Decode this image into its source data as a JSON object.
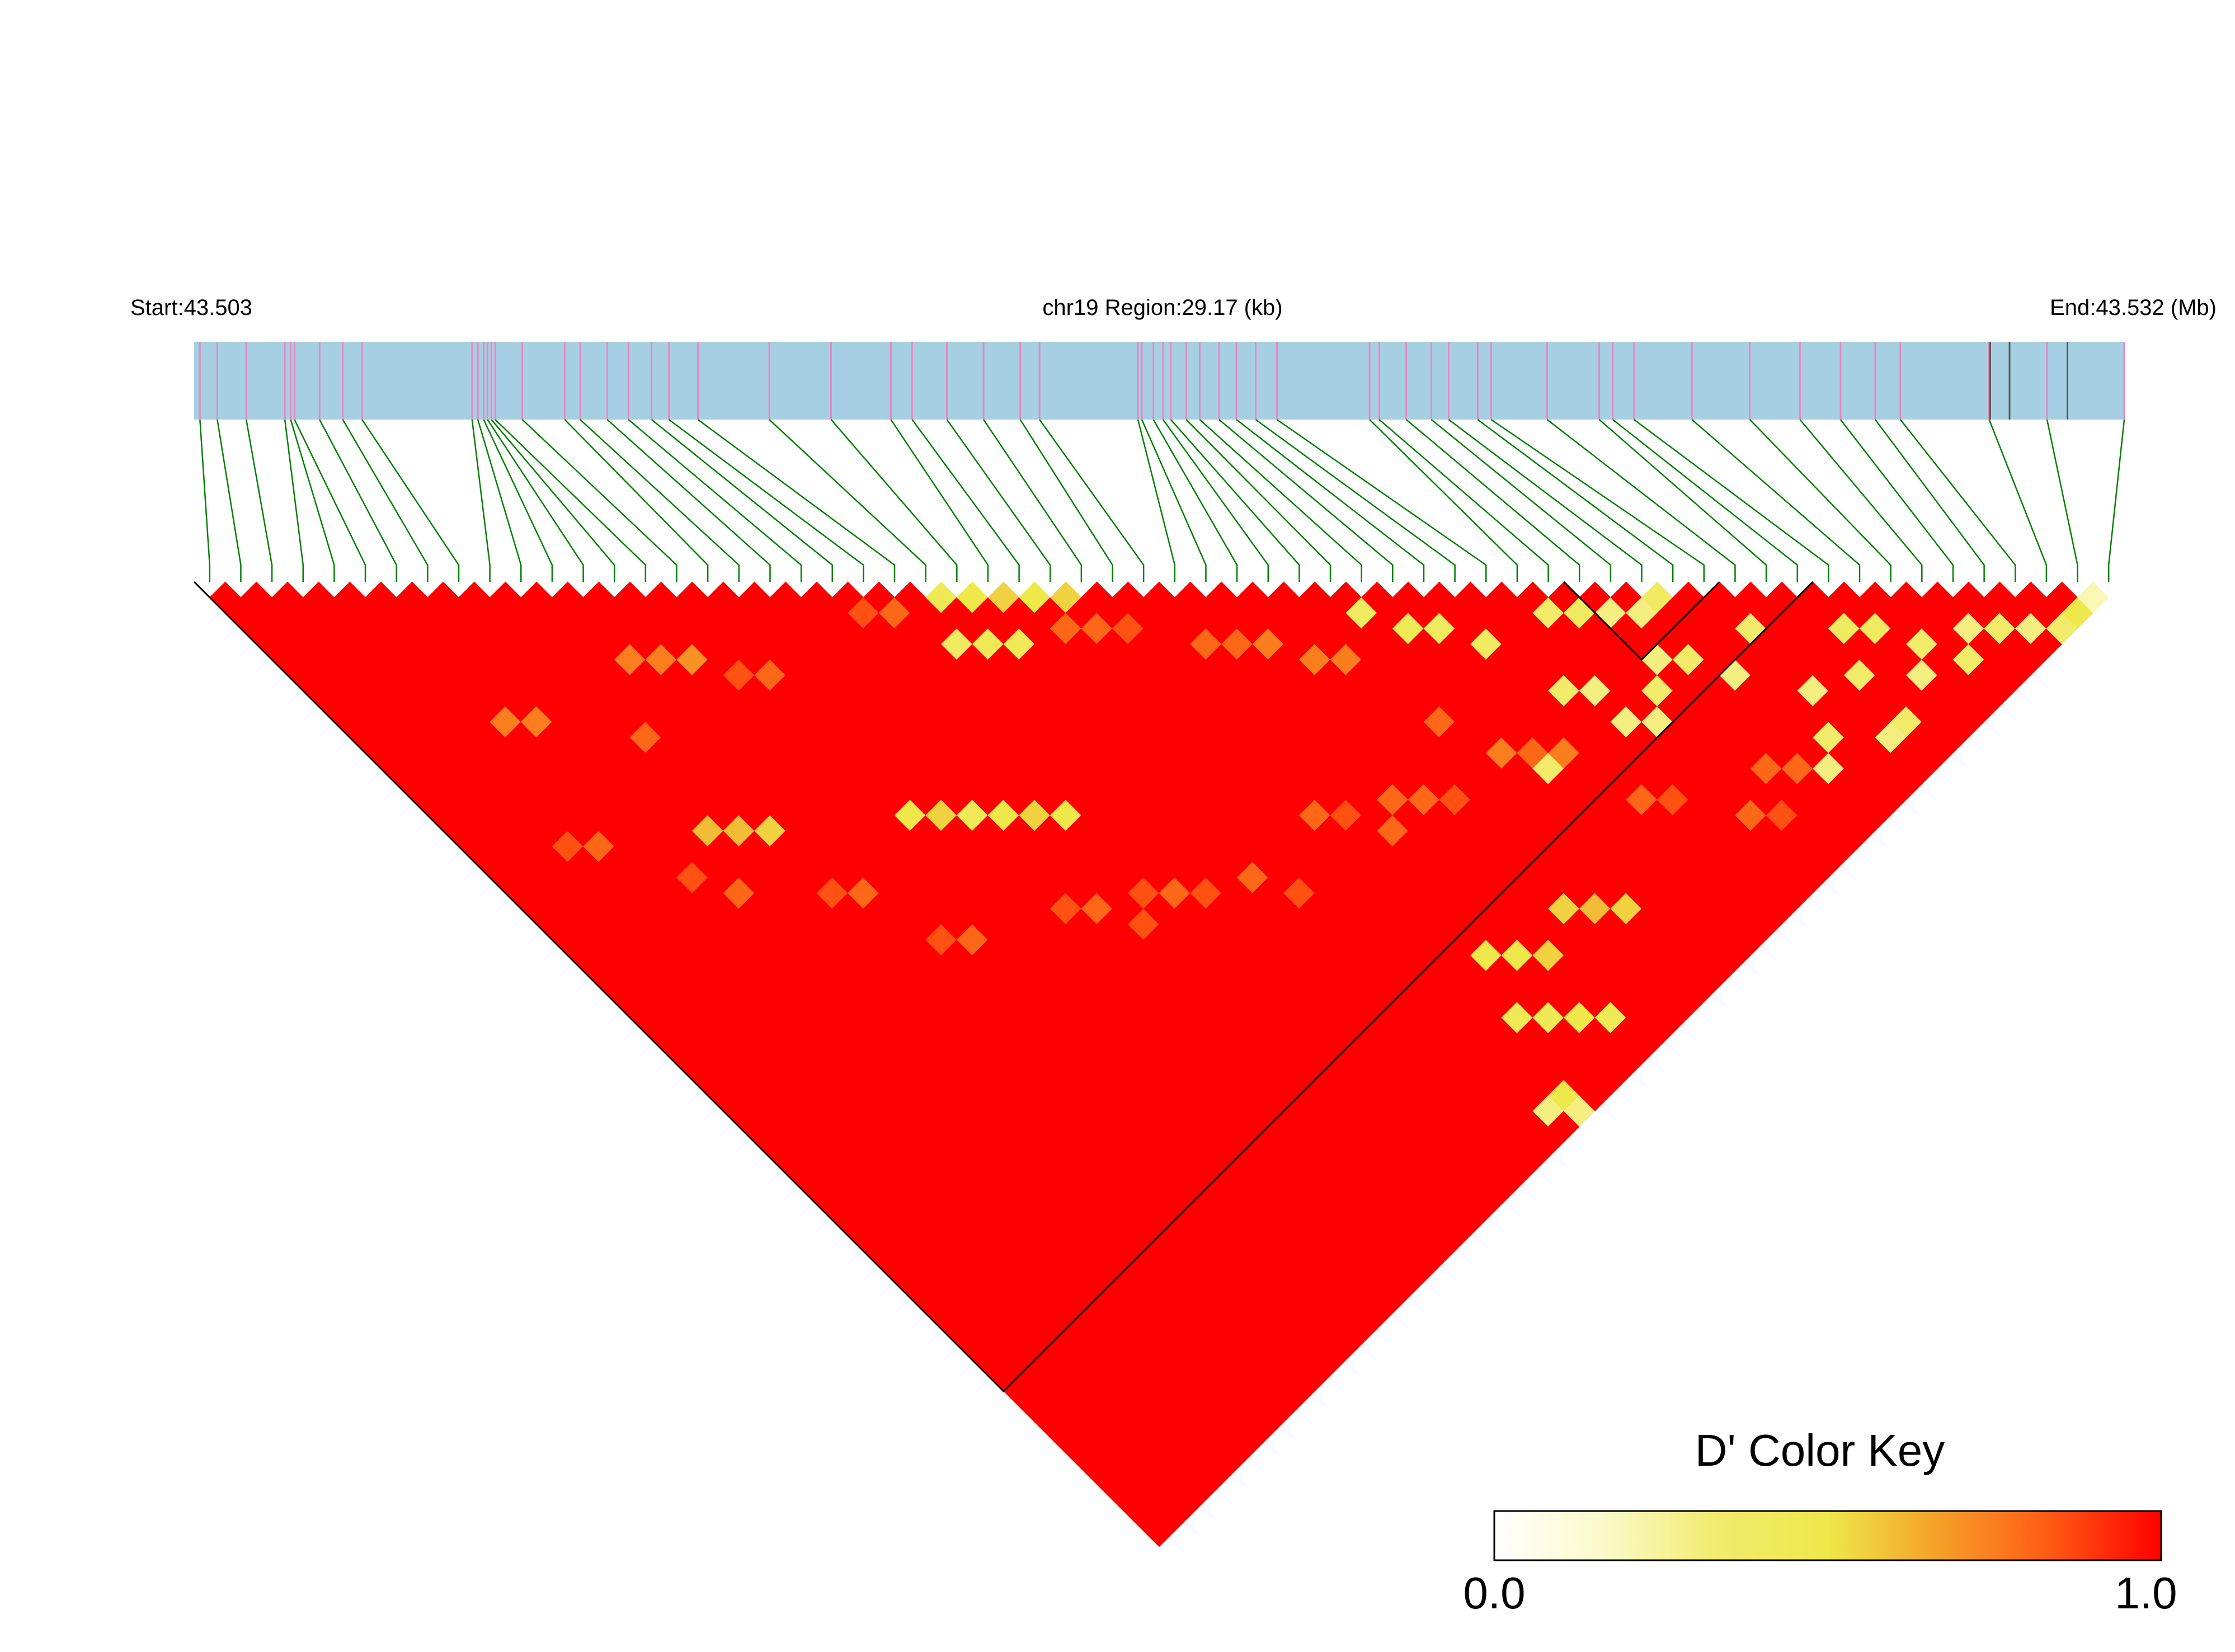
{
  "chart_data": {
    "type": "heatmap",
    "chromosome": "chr19",
    "labels": {
      "start": "Start:43.503",
      "region": "chr19 Region:29.17 (kb)",
      "end": "End:43.532 (Mb)"
    },
    "region_start_mb": 43.503,
    "region_end_mb": 43.532,
    "region_length_kb": 29.17,
    "snp_count": 62,
    "snp_positions_fraction": [
      0.003,
      0.012,
      0.027,
      0.047,
      0.05,
      0.052,
      0.065,
      0.077,
      0.087,
      0.144,
      0.147,
      0.15,
      0.152,
      0.154,
      0.156,
      0.17,
      0.192,
      0.2,
      0.214,
      0.225,
      0.237,
      0.246,
      0.261,
      0.298,
      0.33,
      0.361,
      0.372,
      0.39,
      0.409,
      0.428,
      0.438,
      0.489,
      0.491,
      0.497,
      0.502,
      0.506,
      0.514,
      0.521,
      0.531,
      0.54,
      0.55,
      0.561,
      0.609,
      0.614,
      0.628,
      0.641,
      0.65,
      0.665,
      0.672,
      0.701,
      0.728,
      0.735,
      0.746,
      0.776,
      0.806,
      0.832,
      0.853,
      0.871,
      0.884,
      0.93,
      0.96,
      1.0
    ],
    "gap_lines_fraction": [
      0.93,
      0.94,
      0.97,
      0.97
    ],
    "block_snp_index": 26,
    "block2_range": [
      44,
      48
    ],
    "value_range": [
      0.0,
      1.0
    ],
    "color_key": {
      "title": "D' Color Key",
      "min_label": "0.0",
      "max_label": "1.0",
      "stops": [
        "#FFFFFF",
        "#FAFAC8",
        "#F2EB6E",
        "#EEE84A",
        "#F5A028",
        "#FF5A14",
        "#FF0000"
      ]
    },
    "colors": {
      "high_ld": "#FF0000",
      "medium_ld": "#FF5A1E",
      "low_ld": "#F5D23C",
      "very_low_ld": "#FFF7B0",
      "track_fill": "#A6CFE2",
      "snp_tick": "#E887C2",
      "connector": "#008000",
      "gap_tick": "#555555",
      "block_outline": "#000000"
    },
    "notable_cells": [
      [
        23,
        24,
        0.45
      ],
      [
        24,
        25,
        0.5
      ],
      [
        25,
        26,
        0.55
      ],
      [
        26,
        27,
        0.5
      ],
      [
        27,
        28,
        0.55
      ],
      [
        22,
        26,
        0.4
      ],
      [
        23,
        27,
        0.45
      ],
      [
        24,
        28,
        0.45
      ],
      [
        15,
        30,
        0.5
      ],
      [
        16,
        31,
        0.55
      ],
      [
        17,
        32,
        0.45
      ],
      [
        18,
        33,
        0.5
      ],
      [
        19,
        34,
        0.55
      ],
      [
        20,
        35,
        0.5
      ],
      [
        8,
        24,
        0.6
      ],
      [
        9,
        25,
        0.6
      ],
      [
        10,
        26,
        0.55
      ],
      [
        5,
        14,
        0.75
      ],
      [
        6,
        15,
        0.75
      ],
      [
        9,
        19,
        0.8
      ],
      [
        11,
        16,
        0.75
      ],
      [
        12,
        17,
        0.75
      ],
      [
        13,
        18,
        0.7
      ],
      [
        30,
        34,
        0.8
      ],
      [
        31,
        35,
        0.8
      ],
      [
        32,
        36,
        0.75
      ],
      [
        33,
        38,
        0.75
      ],
      [
        34,
        39,
        0.75
      ],
      [
        26,
        60,
        0.3
      ],
      [
        27,
        61,
        0.3
      ],
      [
        27,
        60,
        0.5
      ],
      [
        28,
        56,
        0.45
      ],
      [
        29,
        57,
        0.45
      ],
      [
        30,
        58,
        0.5
      ],
      [
        31,
        59,
        0.45
      ],
      [
        29,
        53,
        0.5
      ],
      [
        30,
        54,
        0.5
      ],
      [
        31,
        55,
        0.55
      ],
      [
        33,
        54,
        0.55
      ],
      [
        34,
        55,
        0.6
      ],
      [
        35,
        56,
        0.55
      ],
      [
        41,
        50,
        0.3
      ],
      [
        42,
        51,
        0.3
      ],
      [
        43,
        50,
        0.35
      ],
      [
        44,
        49,
        0.3
      ],
      [
        45,
        50,
        0.35
      ],
      [
        46,
        52,
        0.3
      ],
      [
        48,
        51,
        0.35
      ],
      [
        48,
        55,
        0.3
      ],
      [
        50,
        56,
        0.35
      ],
      [
        52,
        58,
        0.3
      ],
      [
        54,
        59,
        0.35
      ],
      [
        40,
        47,
        0.35
      ],
      [
        41,
        48,
        0.3
      ],
      [
        37,
        49,
        0.35
      ],
      [
        46,
        58,
        0.3
      ],
      [
        47,
        57,
        0.35
      ],
      [
        49,
        59,
        0.3
      ],
      [
        50,
        59,
        0.35
      ],
      [
        56,
        59,
        0.35
      ],
      [
        57,
        60,
        0.3
      ],
      [
        58,
        61,
        0.35
      ],
      [
        59,
        61,
        0.5
      ],
      [
        60,
        61,
        0.2
      ],
      [
        55,
        58,
        0.3
      ],
      [
        53,
        57,
        0.35
      ],
      [
        51,
        54,
        0.4
      ],
      [
        52,
        55,
        0.4
      ],
      [
        44,
        46,
        0.3
      ],
      [
        45,
        47,
        0.3
      ],
      [
        46,
        47,
        0.4
      ],
      [
        36,
        38,
        0.4
      ],
      [
        37,
        40,
        0.45
      ],
      [
        38,
        41,
        0.4
      ],
      [
        42,
        44,
        0.35
      ],
      [
        43,
        45,
        0.4
      ],
      [
        39,
        43,
        0.4
      ],
      [
        20,
        22,
        0.85
      ],
      [
        21,
        23,
        0.8
      ],
      [
        14,
        20,
        0.85
      ],
      [
        15,
        21,
        0.8
      ],
      [
        26,
        29,
        0.8
      ],
      [
        27,
        30,
        0.8
      ],
      [
        28,
        31,
        0.85
      ],
      [
        31,
        45,
        0.8
      ],
      [
        32,
        46,
        0.8
      ],
      [
        33,
        47,
        0.85
      ],
      [
        35,
        44,
        0.8
      ],
      [
        36,
        47,
        0.75
      ],
      [
        37,
        48,
        0.8
      ],
      [
        38,
        49,
        0.75
      ],
      [
        20,
        40,
        0.85
      ],
      [
        21,
        41,
        0.8
      ],
      [
        22,
        42,
        0.85
      ],
      [
        12,
        35,
        0.85
      ],
      [
        13,
        36,
        0.8
      ],
      [
        28,
        43,
        0.8
      ],
      [
        29,
        44,
        0.85
      ],
      [
        30,
        46,
        0.8
      ],
      [
        39,
        53,
        0.8
      ],
      [
        40,
        54,
        0.85
      ],
      [
        44,
        56,
        0.8
      ],
      [
        45,
        57,
        0.8
      ],
      [
        43,
        58,
        0.85
      ],
      [
        42,
        57,
        0.8
      ],
      [
        3,
        20,
        0.85
      ],
      [
        4,
        21,
        0.8
      ],
      [
        6,
        25,
        0.85
      ],
      [
        7,
        27,
        0.8
      ],
      [
        10,
        30,
        0.85
      ],
      [
        11,
        31,
        0.8
      ],
      [
        17,
        38,
        0.85
      ],
      [
        18,
        39,
        0.8
      ],
      [
        19,
        41,
        0.85
      ],
      [
        24,
        43,
        0.8
      ],
      [
        25,
        45,
        0.85
      ]
    ]
  }
}
